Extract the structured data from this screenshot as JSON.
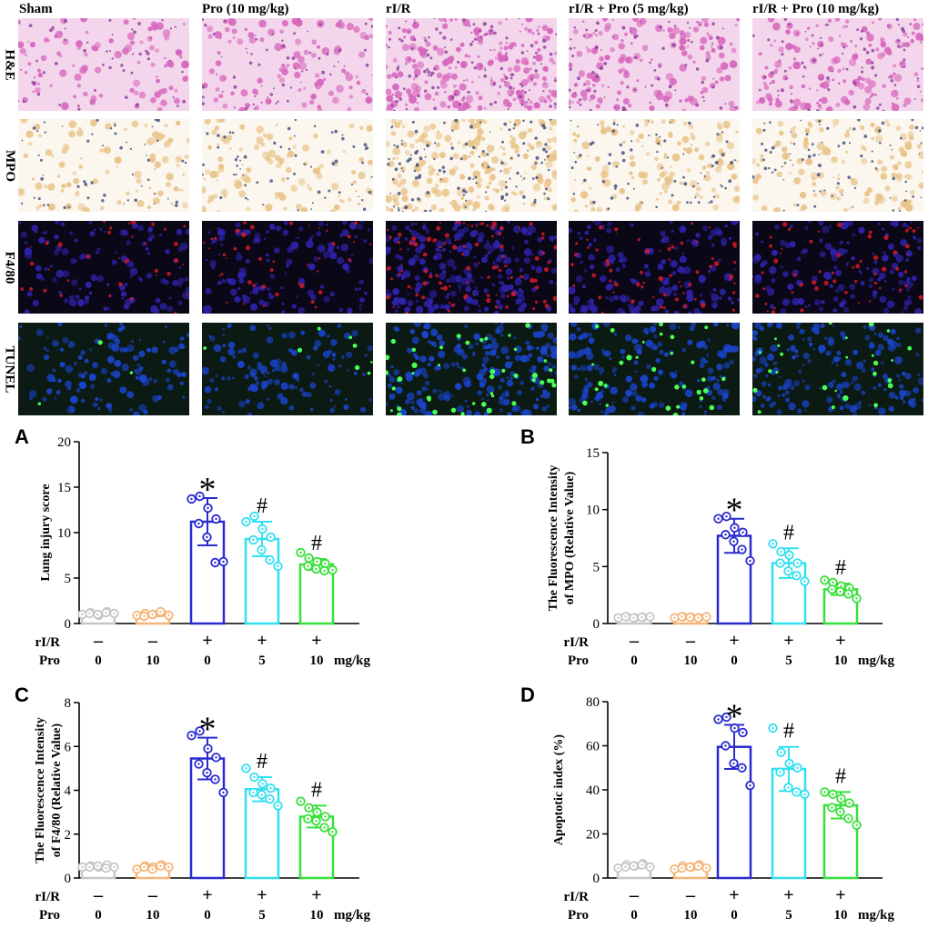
{
  "micrographs": {
    "columns": [
      "Sham",
      "Pro (10 mg/kg)",
      "rI/R",
      "rI/R + Pro (5 mg/kg)",
      "rI/R + Pro (10 mg/kg)"
    ],
    "rows": [
      "H&E",
      "MPO",
      "F4/80",
      "TUNEL"
    ]
  },
  "colors": {
    "group_colors": [
      "#c7c7c7",
      "#f5b57a",
      "#2a2ad0",
      "#33e0f0",
      "#39e03a"
    ],
    "he_background": "#f4d6ec",
    "he_tissue": "#d768bd",
    "mpo_background": "#fbf6ee",
    "mpo_tissue": "#e9c48a",
    "f480_background": "#0a0716",
    "f480_tissue": "#2e22a8",
    "tunel_background": "#0b1a12",
    "tunel_tissue": "#1a43c8",
    "tunel_positive": "#47ff57"
  },
  "x_table": {
    "row_labels": [
      "rI/R",
      "Pro"
    ],
    "rIR": [
      "–",
      "–",
      "+",
      "+",
      "+"
    ],
    "pro": [
      "0",
      "10",
      "0",
      "5",
      "10"
    ],
    "unit": "mg/kg"
  },
  "chart_data": [
    {
      "panel": "A",
      "type": "bar",
      "ylabel": "Lung injury score",
      "ylim": [
        0,
        20
      ],
      "yticks": [
        0,
        5,
        10,
        15,
        20
      ],
      "means": [
        1.1,
        1.0,
        11.2,
        9.3,
        6.5
      ],
      "sd": [
        0.2,
        0.2,
        2.6,
        1.9,
        0.6
      ],
      "points": [
        [
          1.0,
          1.2,
          0.9,
          1.3,
          1.1,
          1.0,
          1.2,
          1.1
        ],
        [
          0.9,
          1.1,
          1.0,
          1.2,
          0.8,
          1.0,
          1.3,
          0.9
        ],
        [
          13.7,
          14.0,
          12.7,
          11.5,
          11.0,
          9.5,
          6.7,
          6.8
        ],
        [
          11.2,
          11.8,
          10.4,
          9.5,
          9.2,
          8.1,
          7.0,
          6.3
        ],
        [
          7.8,
          7.2,
          6.8,
          6.6,
          6.3,
          6.0,
          5.8,
          5.9
        ]
      ],
      "significance": [
        "",
        "",
        "*",
        "#",
        "#"
      ]
    },
    {
      "panel": "B",
      "type": "bar",
      "ylabel": [
        "The Fluorescence Intensity",
        "of MPO (Relative Value)"
      ],
      "ylim": [
        0,
        15
      ],
      "yticks": [
        0,
        5,
        10,
        15
      ],
      "means": [
        0.55,
        0.55,
        7.7,
        5.3,
        3.0
      ],
      "sd": [
        0.1,
        0.1,
        1.5,
        1.3,
        0.5
      ],
      "points": [
        [
          0.5,
          0.6,
          0.5,
          0.55,
          0.6,
          0.5,
          0.55,
          0.6
        ],
        [
          0.5,
          0.6,
          0.55,
          0.5,
          0.6,
          0.55,
          0.5,
          0.6
        ],
        [
          9.2,
          9.4,
          8.4,
          8.0,
          7.8,
          7.2,
          6.5,
          5.5
        ],
        [
          7.0,
          6.3,
          6.0,
          5.3,
          5.3,
          4.6,
          4.2,
          3.7
        ],
        [
          3.8,
          3.6,
          3.3,
          3.1,
          3.0,
          2.8,
          2.6,
          2.2
        ]
      ],
      "significance": [
        "",
        "",
        "*",
        "#",
        "#"
      ]
    },
    {
      "panel": "C",
      "type": "bar",
      "ylabel": [
        "The Fluorescence Intensity",
        "of F4/80 (Relative Value)"
      ],
      "ylim": [
        0,
        8
      ],
      "yticks": [
        0,
        2,
        4,
        6,
        8
      ],
      "means": [
        0.52,
        0.52,
        5.45,
        4.05,
        2.8
      ],
      "sd": [
        0.08,
        0.08,
        0.95,
        0.55,
        0.5
      ],
      "points": [
        [
          0.5,
          0.55,
          0.5,
          0.6,
          0.5,
          0.55,
          0.45,
          0.5
        ],
        [
          0.4,
          0.55,
          0.5,
          0.6,
          0.5,
          0.4,
          0.55,
          0.5
        ],
        [
          6.5,
          6.7,
          5.9,
          5.5,
          5.2,
          4.8,
          4.5,
          3.9
        ],
        [
          5.0,
          4.6,
          4.3,
          4.1,
          3.9,
          3.8,
          3.6,
          3.3
        ],
        [
          3.5,
          3.2,
          3.0,
          2.8,
          2.7,
          2.6,
          2.3,
          2.1
        ]
      ],
      "significance": [
        "",
        "",
        "*",
        "#",
        "#"
      ]
    },
    {
      "panel": "D",
      "type": "bar",
      "ylabel": "Apoptotic index (%)",
      "ylim": [
        0,
        80
      ],
      "yticks": [
        0,
        20,
        40,
        60,
        80
      ],
      "means": [
        5.5,
        5.0,
        59.5,
        49.5,
        33.0
      ],
      "sd": [
        1.0,
        1.0,
        10.0,
        10.0,
        6.0
      ],
      "points": [
        [
          4.5,
          6.0,
          5.5,
          6.5,
          5.0,
          5.5,
          6.0,
          5.0
        ],
        [
          4.0,
          5.5,
          5.0,
          6.0,
          4.5,
          5.0,
          5.5,
          4.5
        ],
        [
          72.0,
          73.0,
          68.0,
          66.0,
          60.0,
          52.0,
          50.0,
          42.0
        ],
        [
          68.0,
          57.0,
          52.0,
          50.0,
          48.0,
          41.0,
          39.0,
          38.0
        ],
        [
          39.0,
          38.0,
          36.0,
          34.0,
          32.0,
          30.0,
          27.0,
          24.0
        ]
      ],
      "significance": [
        "",
        "",
        "*",
        "#",
        "#"
      ]
    }
  ]
}
